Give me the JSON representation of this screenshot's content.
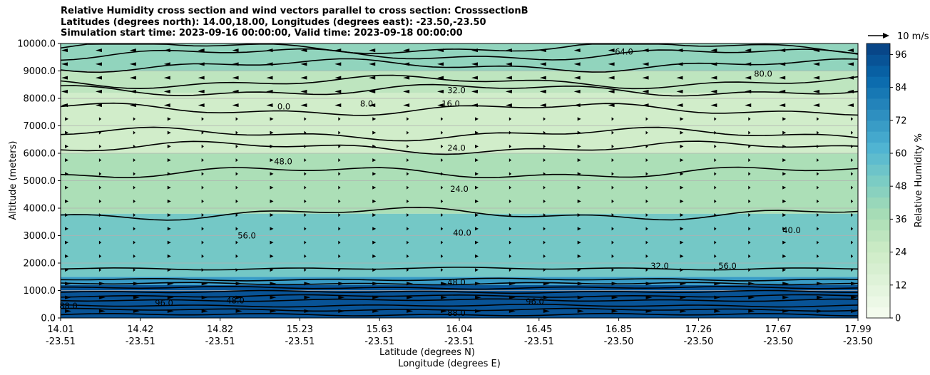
{
  "chart_data": {
    "type": "heatmap",
    "title": [
      "Relative Humidity cross section and wind vectors parallel to cross section: CrosssectionB",
      "Latitudes (degrees north): 14.00,18.00, Longitudes (degrees east): -23.50,-23.50",
      "Simulation start time: 2023-09-16 00:00:00, Valid time: 2023-09-18 00:00:00"
    ],
    "ylabel": "Altitude (meters)",
    "xlabel": "Latitude (degrees N)",
    "xlabel2": "Longitude (degrees E)",
    "ylim": [
      0,
      10000
    ],
    "yticks": [
      "0.0",
      "1000.0",
      "2000.0",
      "3000.0",
      "4000.0",
      "5000.0",
      "6000.0",
      "7000.0",
      "8000.0",
      "9000.0",
      "10000.0"
    ],
    "x_latitude": [
      "14.01",
      "14.42",
      "14.82",
      "15.23",
      "15.63",
      "16.04",
      "16.45",
      "16.85",
      "17.26",
      "17.67",
      "17.99"
    ],
    "x_longitude": [
      "-23.51",
      "-23.51",
      "-23.51",
      "-23.51",
      "-23.51",
      "-23.51",
      "-23.51",
      "-23.50",
      "-23.50",
      "-23.50",
      "-23.50"
    ],
    "grid": true,
    "colorbar": {
      "label": "Relative Humidity %",
      "ticks": [
        "0",
        "12",
        "24",
        "36",
        "48",
        "60",
        "72",
        "84",
        "96"
      ],
      "range": [
        0,
        100
      ],
      "levels": 25,
      "colormap": "GnBu"
    },
    "quiver_key": "10 m/s",
    "humidity_layers": [
      {
        "bottom": 0,
        "top": 1200,
        "value": 94
      },
      {
        "bottom": 1200,
        "top": 1500,
        "value": 70
      },
      {
        "bottom": 1500,
        "top": 3800,
        "value": 52
      },
      {
        "bottom": 3800,
        "top": 6000,
        "value": 36
      },
      {
        "bottom": 6000,
        "top": 8200,
        "value": 22
      },
      {
        "bottom": 8200,
        "top": 9000,
        "value": 30
      },
      {
        "bottom": 9000,
        "top": 10000,
        "value": 44
      }
    ],
    "contour_labels": [
      "88.0",
      "96.0",
      "48.0",
      "56.0",
      "40.0",
      "32.0",
      "24.0",
      "16.0",
      "8.0",
      "0.0",
      "64.0",
      "80.0"
    ]
  }
}
